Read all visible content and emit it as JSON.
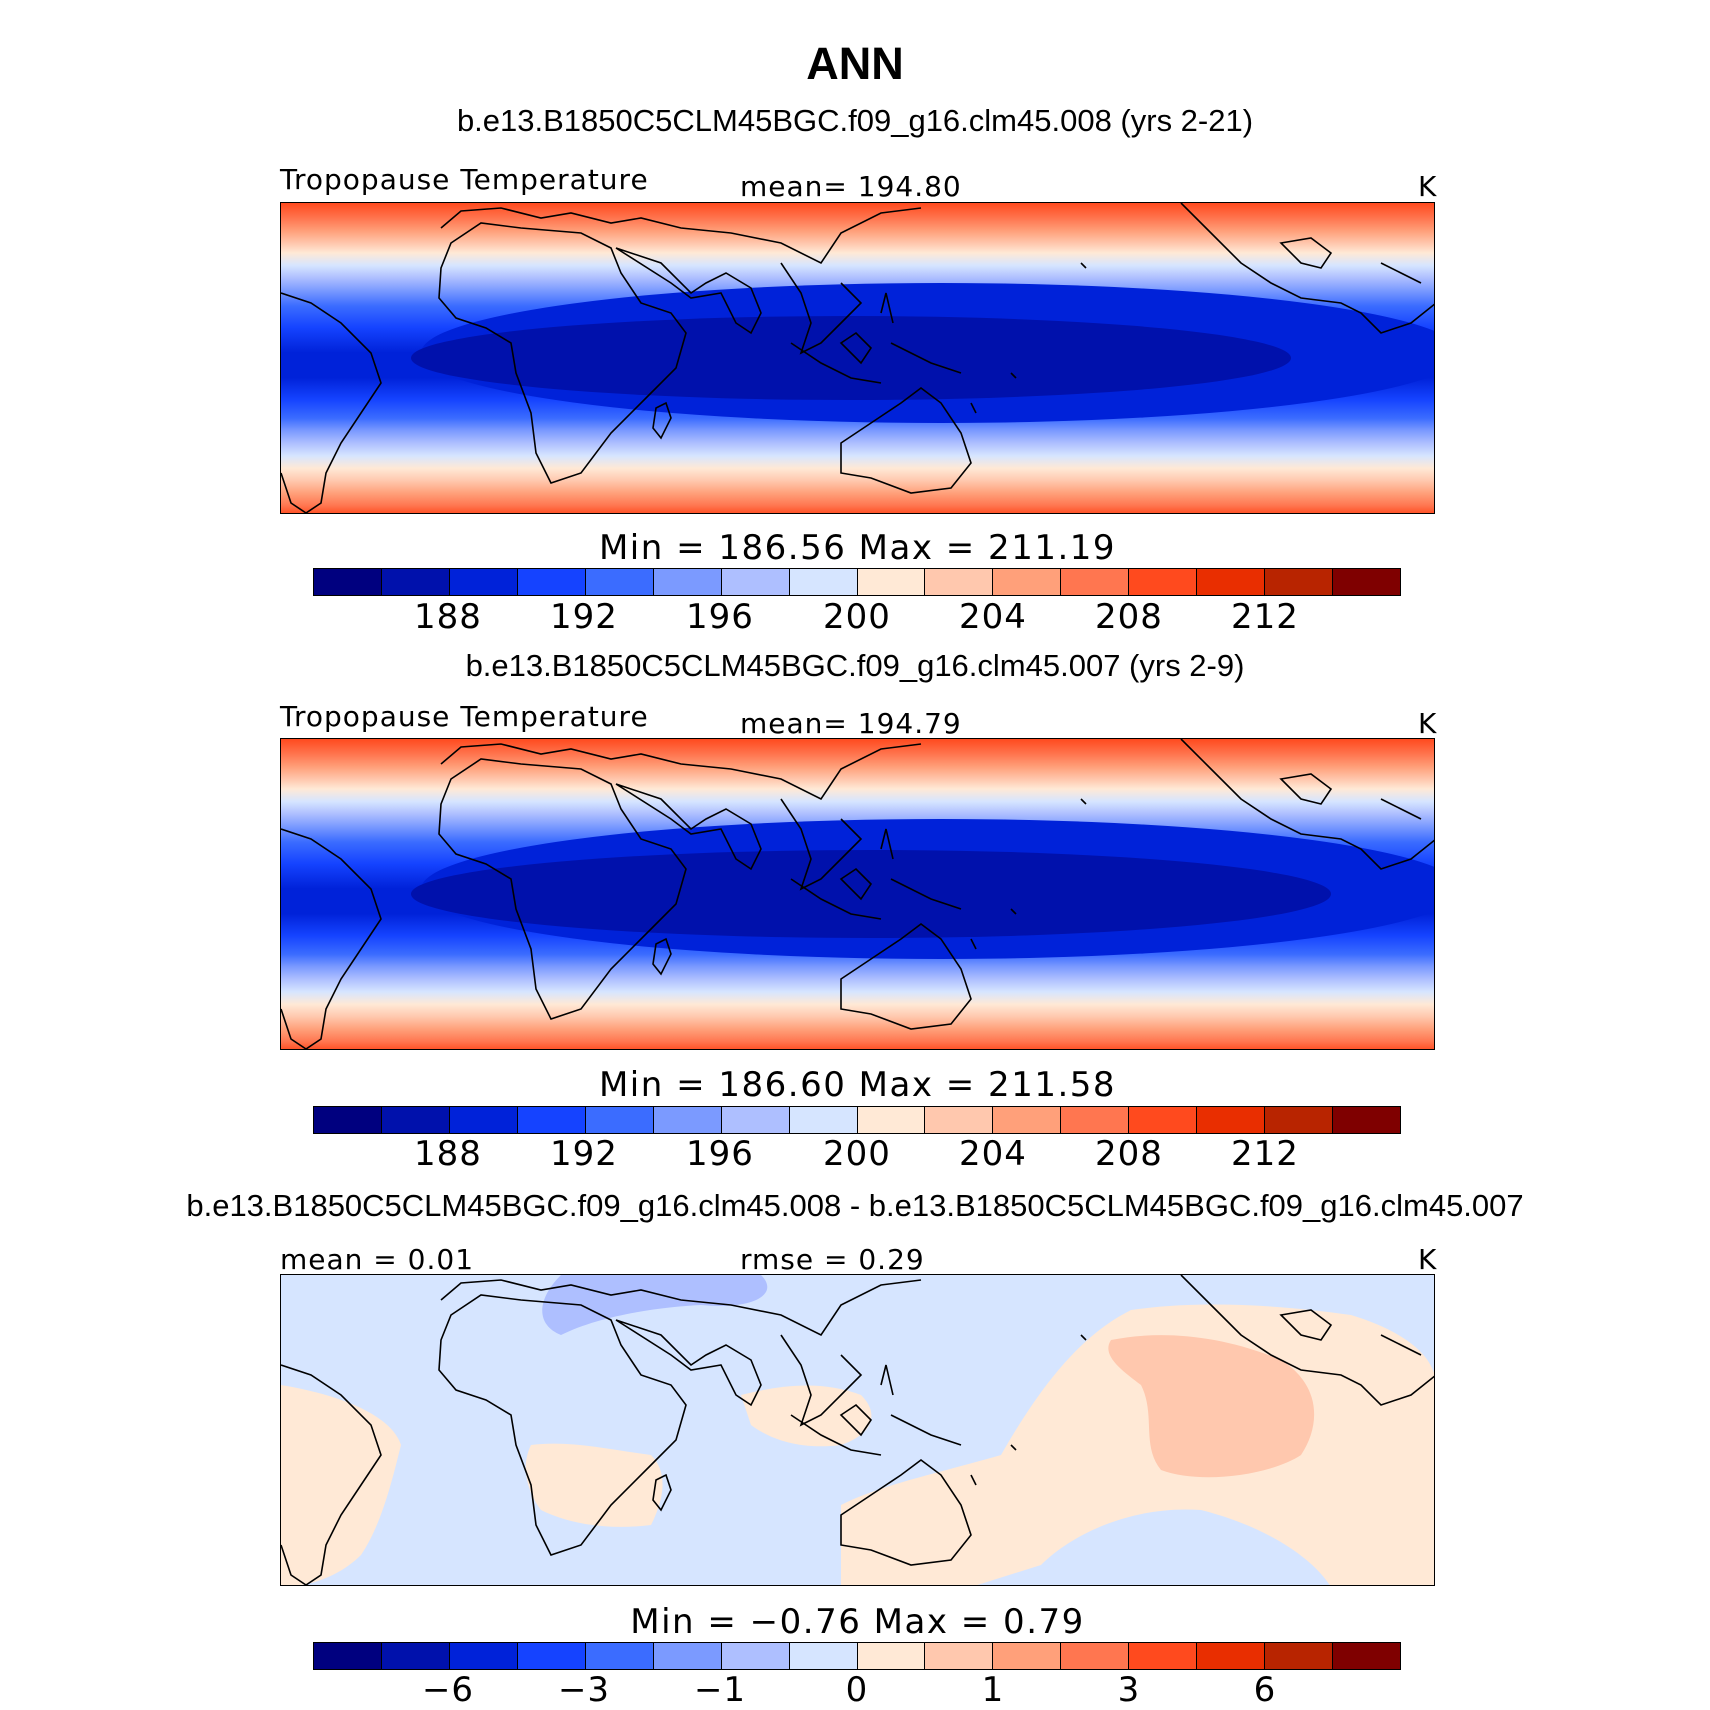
{
  "title": "ANN",
  "colors": [
    "#00007f",
    "#0011ac",
    "#0022d9",
    "#1543ff",
    "#3b6cff",
    "#7b9aff",
    "#aebfff",
    "#d6e5ff",
    "#ffe9d6",
    "#ffc8ae",
    "#ffa07a",
    "#ff7650",
    "#ff4a1e",
    "#e92e00",
    "#b82400",
    "#7f0000"
  ],
  "panels": [
    {
      "case_title": "b.e13.B1850C5CLM45BGC.f09_g16.clm45.008 (yrs 2-21)",
      "left_label": "Tropopause  Temperature",
      "center_label": "mean=  194.80",
      "units": "K",
      "minmax": "Min  =  186.56  Max  =  211.19",
      "ticks": [
        "188",
        "192",
        "196",
        "200",
        "204",
        "208",
        "212"
      ]
    },
    {
      "case_title": "b.e13.B1850C5CLM45BGC.f09_g16.clm45.007 (yrs 2-9)",
      "left_label": "Tropopause  Temperature",
      "center_label": "mean=  194.79",
      "units": "K",
      "minmax": "Min  =  186.60  Max  =  211.58",
      "ticks": [
        "188",
        "192",
        "196",
        "200",
        "204",
        "208",
        "212"
      ]
    },
    {
      "case_title": "b.e13.B1850C5CLM45BGC.f09_g16.clm45.008 - b.e13.B1850C5CLM45BGC.f09_g16.clm45.007",
      "left_label": "mean  =    0.01",
      "center_label": "rmse  =    0.29",
      "units": "K",
      "minmax": "Min  =   −0.76  Max  =     0.79",
      "ticks": [
        "−6",
        "−3",
        "−1",
        "0",
        "1",
        "3",
        "6"
      ]
    }
  ]
}
